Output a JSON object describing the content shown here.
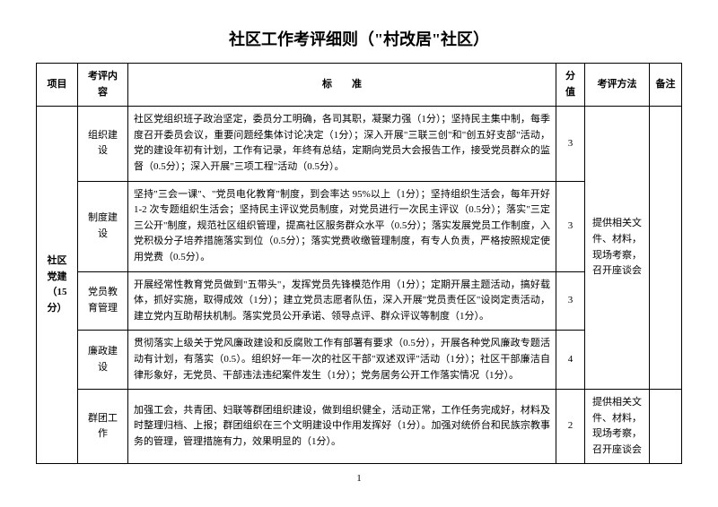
{
  "title": "社区工作考评细则（\"村改居\"社区）",
  "headers": {
    "project": "项目",
    "content": "考评内容",
    "standard": "标　　准",
    "score": "分值",
    "method": "考评方法",
    "remark": "备注"
  },
  "projectGroup": {
    "label": "社区\n党建\n（15分）"
  },
  "rows": [
    {
      "content": "组织建设",
      "standard": "社区党组织班子政治坚定，委员分工明确，各司其职，凝聚力强（1分）；坚持民主集中制，每季度召开委员会议，重要问题经集体讨论决定（1分）；深入开展\"三联三创\"和\"创五好支部\"活动，党的建设年初有计划，工作有记录，年终有总结，定期向党员大会报告工作，接受党员群众的监督（0.5分）；深入开展\"三项工程\"活动（0.5分）。",
      "score": "3"
    },
    {
      "content": "制度建设",
      "standard": "坚持\"三会一课\"、\"党员电化教育\"制度，到会率达 95%以上（1分）；坚持组织生活会，每年开好 1-2 次专题组织生活会；坚持民主评议党员制度，对党员进行一次民主评议（0.5分）；落实\"三定三公开\"制度，规范社区组织管理，提高社区服务群众水平（0.5分）；落实发展党员工作制度，入党积极分子培养措施落实到位（0.5分）；落实党费收缴管理制度，有专人负责，严格按照规定使用党费（0.5分）。",
      "score": "3"
    },
    {
      "content": "党员教育管理",
      "standard": "开展经常性教育党员做到\"五带头\"，发挥党员先锋模范作用（1分）；定期开展主题活动，搞好载体，抓好实施，取得成效（1分）；建立党员志愿者队伍，深入开展\"党员责任区\"设岗定责活动，建立党内互助帮扶机制。落实党员公开承诺、领导点评、群众评议等制度（1分）。",
      "score": "3"
    },
    {
      "content": "廉政建设",
      "standard": "贯彻落实上级关于党风廉政建设和反腐败工作有部署有要求（0.5分），开展各种党风廉政专题活动有计划，有落实（0.5）。组织好一年一次的社区干部\"双述双评\"活动（1分）；社区干部廉洁自律形象好，无党员、干部违法违纪案件发生（1分）；党务居务公开工作落实情况（1分）。",
      "score": "4"
    },
    {
      "content": "群团工作",
      "standard": "加强工会，共青团、妇联等群团组织建设，做到组织健全，活动正常，工作任务完成好，材料及时整理归档、上报；群团组织在三个文明建设中作用发挥好（1分）。加强对统侨台和民族宗教事务的管理，管理措施有力，效果明显的（1分）。",
      "score": "2"
    }
  ],
  "methods": {
    "group1": "提供相关文件、材料，现场考察，召开座谈会",
    "group2": "提供相关文件、材料，现场考察，召开座谈会"
  },
  "pageNumber": "1"
}
